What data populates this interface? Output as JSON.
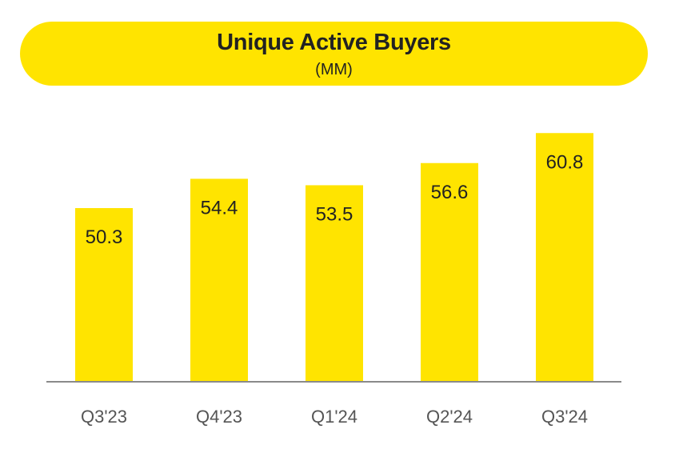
{
  "colors": {
    "accent": "#FFE400",
    "text": "#222222",
    "axis_text": "#555555",
    "baseline": "#8a8a8a"
  },
  "header": {
    "title": "Unique Active Buyers",
    "subtitle": "(MM)"
  },
  "chart_data": {
    "type": "bar",
    "title": "Unique Active Buyers",
    "subtitle": "(MM)",
    "categories": [
      "Q3'23",
      "Q4'23",
      "Q1'24",
      "Q2'24",
      "Q3'24"
    ],
    "values": [
      50.3,
      54.4,
      53.5,
      56.6,
      60.8
    ],
    "data_labels": [
      "50.3",
      "54.4",
      "53.5",
      "56.6",
      "60.8"
    ],
    "xlabel": "",
    "ylabel": "",
    "ylim": [
      26,
      61.5
    ],
    "grid": false,
    "legend": "none"
  }
}
